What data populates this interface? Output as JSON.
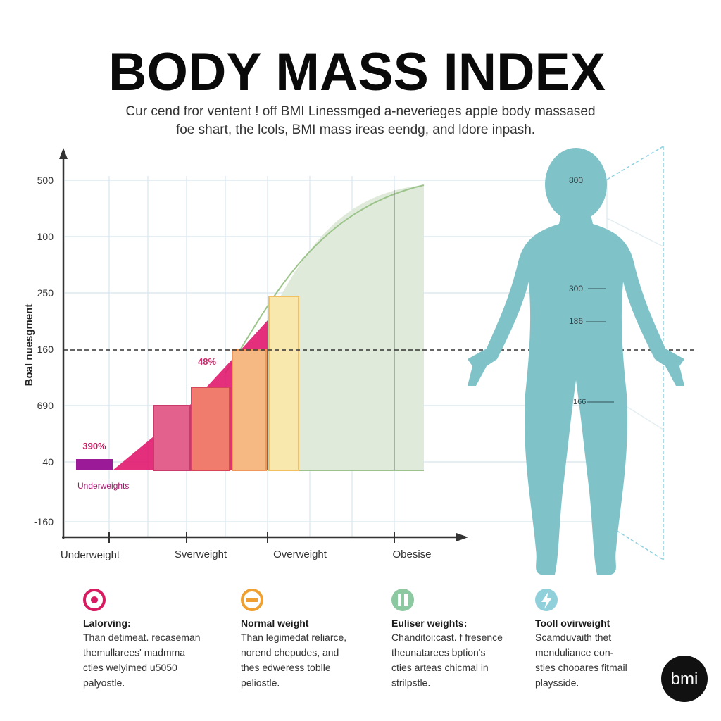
{
  "header": {
    "title": "BODY MASS INDEX",
    "subtitle": [
      "Cur cend fror ventent ! off BMI Linessmged a-neverieges apple body massased",
      "foe shart, the lcols, BMI mass ireas eendg, and ldore inpash."
    ]
  },
  "chart": {
    "y_axis_label": "Boal nuesgment",
    "y_labels": [
      "500",
      "100",
      "250",
      "160",
      "690",
      "40",
      "-160"
    ],
    "x_labels": [
      "Underweight",
      "Sverweight",
      "Overweight",
      "Obesise"
    ],
    "annotations": [
      "48%",
      "390%",
      "Underweights"
    ]
  },
  "figure": {
    "labels": [
      "800",
      "300",
      "186",
      "166"
    ]
  },
  "cards": [
    {
      "title": "Lalorving:",
      "lines": [
        "Than detimeat. recaseman",
        "themullarees' madmma",
        "cties welyimed u5050",
        "palyostle."
      ]
    },
    {
      "title": "Normal weight",
      "lines": [
        "Than legimedat reliarce,",
        "norend chepudes, and",
        "thes edweress toblle",
        "peliostle."
      ]
    },
    {
      "title": "Euliser weights:",
      "lines": [
        "Chanditoi:cast. f fresence",
        "theunatarees bption's",
        "cties arteas chicmal in",
        "strilpstle."
      ]
    },
    {
      "title": "Tooll ovirweight",
      "lines": [
        "Scamduvaith thet",
        "menduliance eon-",
        "sties chooares fitmail",
        "playsside."
      ]
    }
  ],
  "badge": "bmi"
}
